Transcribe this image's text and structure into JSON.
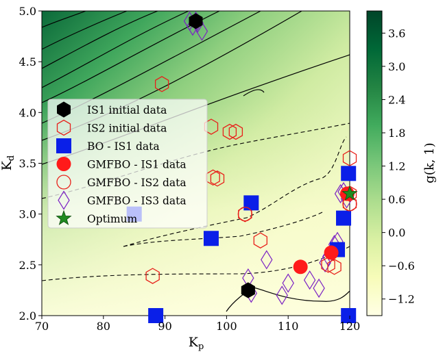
{
  "chart_data": {
    "type": "scatter",
    "subtype": "contour-with-scatter-overlay",
    "xlabel": "K_p",
    "ylabel": "K_d",
    "xlim": [
      70,
      120
    ],
    "ylim": [
      2.0,
      5.0
    ],
    "x_ticks": [
      "70",
      "80",
      "90",
      "100",
      "110",
      "120"
    ],
    "y_ticks": [
      "2.0",
      "2.5",
      "3.0",
      "3.5",
      "4.0",
      "4.5",
      "5.0"
    ],
    "colorbar": {
      "label": "g(k, 1)",
      "range": [
        -1.5,
        4.0
      ],
      "ticks": [
        "3.6",
        "3.0",
        "2.4",
        "1.8",
        "1.2",
        "0.6",
        "0.0",
        "−0.6",
        "−1.2"
      ],
      "colors": [
        "#ffffe5",
        "#f7fcb9",
        "#d9f0a3",
        "#addd8e",
        "#78c679",
        "#41ab5d",
        "#238443",
        "#006837",
        "#004529"
      ]
    },
    "legend_position": "center-left",
    "series": [
      {
        "name": "IS1 initial data",
        "marker": "hexagon-filled",
        "color": "#000000",
        "points": [
          [
            95,
            4.9
          ],
          [
            103.5,
            2.25
          ]
        ]
      },
      {
        "name": "IS2 initial data",
        "marker": "hexagon-open",
        "color": "#e8201a",
        "points": [
          [
            89.5,
            4.28
          ],
          [
            97.5,
            3.86
          ],
          [
            100.5,
            3.81
          ],
          [
            101.5,
            3.81
          ],
          [
            97.8,
            3.36
          ],
          [
            98.5,
            3.35
          ],
          [
            103,
            3.0
          ],
          [
            105.5,
            2.74
          ],
          [
            116.5,
            2.5
          ],
          [
            117.5,
            2.48
          ],
          [
            88,
            2.39
          ],
          [
            120,
            3.1
          ],
          [
            120,
            3.55
          ],
          [
            120,
            3.2
          ]
        ]
      },
      {
        "name": "BO - IS1 data",
        "marker": "square",
        "color": "#0a1fe8",
        "points": [
          [
            85,
            3.0
          ],
          [
            104,
            3.11
          ],
          [
            97.5,
            2.76
          ],
          [
            88.5,
            2.0
          ],
          [
            119,
            2.96
          ],
          [
            119.8,
            3.4
          ],
          [
            119.8,
            2.0
          ],
          [
            118,
            2.65
          ]
        ]
      },
      {
        "name": "GMFBO - IS1 data",
        "marker": "circle-filled",
        "color": "#ff1a1a",
        "points": [
          [
            112,
            2.48
          ],
          [
            117,
            2.62
          ],
          [
            119.6,
            3.2
          ]
        ]
      },
      {
        "name": "GMFBO - IS2 data",
        "marker": "circle-open",
        "color": "#e8201a",
        "points": [
          [
            103,
            3.0
          ],
          [
            120,
            3.1
          ]
        ]
      },
      {
        "name": "GMFBO - IS3 data",
        "marker": "diamond-open",
        "color": "#7b22c4",
        "points": [
          [
            94.5,
            4.85
          ],
          [
            95.3,
            4.88
          ],
          [
            94,
            4.9
          ],
          [
            96,
            4.8
          ],
          [
            95,
            4.9
          ],
          [
            103.5,
            2.37
          ],
          [
            104,
            2.22
          ],
          [
            106.5,
            2.55
          ],
          [
            109,
            2.2
          ],
          [
            110,
            2.32
          ],
          [
            113.5,
            2.35
          ],
          [
            115,
            2.27
          ],
          [
            116,
            2.52
          ],
          [
            117.5,
            2.7
          ],
          [
            118,
            2.73
          ],
          [
            118.5,
            3.2
          ],
          [
            119,
            3.22
          ],
          [
            119.5,
            3.15
          ],
          [
            116.5,
            2.58
          ]
        ]
      },
      {
        "name": "Optimum",
        "marker": "star",
        "color": "#1f8a1f",
        "points": [
          [
            120,
            3.2
          ]
        ]
      }
    ]
  }
}
